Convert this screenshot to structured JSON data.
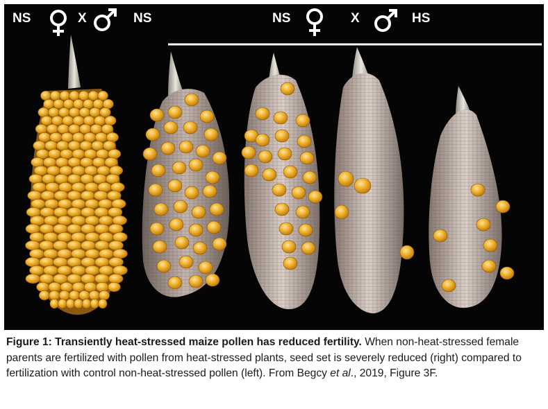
{
  "figure": {
    "left_labels": {
      "female": "NS",
      "cross": "X",
      "male": "NS"
    },
    "right_labels": {
      "female": "NS",
      "cross": "X",
      "male": "HS"
    }
  },
  "caption": {
    "label": "Figure 1: Transiently heat-stressed maize pollen has reduced fertility.",
    "body": " When non-heat-stressed female parents are fertilized with pollen from heat-stressed plants, seed set is severely reduced (right) compared to fertilization with control non-heat-stressed pollen (left). From Begcy ",
    "etal": "et al",
    "tail": "., 2019, Figure 3F."
  },
  "colors": {
    "background": "#050505",
    "kernel": "#e8a31c",
    "cob": "#b7a69c",
    "label_text": "#ffffff"
  }
}
